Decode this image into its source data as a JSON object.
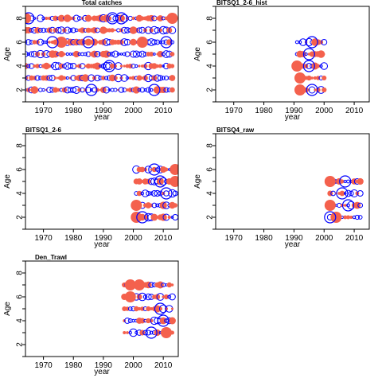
{
  "chart_data": [
    {
      "type": "scatter",
      "title": "Total catches",
      "xlabel": "year",
      "ylabel": "Age",
      "xlim": [
        1964,
        2015
      ],
      "ylim": [
        1,
        9
      ],
      "xticks": [
        1970,
        1980,
        1990,
        2000,
        2010
      ],
      "yticks": [
        2,
        4,
        6,
        8
      ],
      "years": [
        1964,
        2013
      ],
      "ages": [
        2,
        3,
        4,
        5,
        6,
        7,
        8
      ],
      "big_red": [
        [
          1964,
          8
        ],
        [
          2013,
          8
        ],
        [
          1976,
          6
        ],
        [
          2003,
          6
        ]
      ],
      "big_blue": [
        [
          1965,
          8
        ],
        [
          1993,
          8
        ],
        [
          1996,
          8
        ],
        [
          1973,
          6
        ],
        [
          1985,
          6
        ],
        [
          2011,
          6
        ],
        [
          1992,
          4
        ],
        [
          1986,
          2
        ],
        [
          2007,
          2
        ]
      ]
    },
    {
      "type": "scatter",
      "title": "BITSQ1_2-6_hist",
      "xlabel": "year",
      "ylabel": "Age",
      "xlim": [
        1964,
        2015
      ],
      "ylim": [
        1,
        9
      ],
      "xticks": [
        1970,
        1980,
        1990,
        2000,
        2010
      ],
      "yticks": [
        2,
        4,
        6,
        8
      ],
      "years": [
        1991,
        2000
      ],
      "ages": [
        2,
        3,
        4,
        5,
        6
      ],
      "big_red": [
        [
          1992,
          3
        ],
        [
          1992,
          2
        ],
        [
          1991,
          4
        ]
      ],
      "big_blue": [
        [
          1996,
          6
        ],
        [
          1995,
          4
        ],
        [
          1995,
          5
        ],
        [
          1996,
          2
        ]
      ]
    },
    {
      "type": "scatter",
      "title": "BITSQ1_2-6",
      "xlabel": "year",
      "ylabel": "Age",
      "xlim": [
        1964,
        2015
      ],
      "ylim": [
        1,
        9
      ],
      "xticks": [
        1970,
        1980,
        1990,
        2000,
        2010
      ],
      "yticks": [
        2,
        4,
        6,
        8
      ],
      "years": [
        2001,
        2014
      ],
      "ages": [
        2,
        3,
        4,
        5,
        6
      ],
      "big_red": [
        [
          2014,
          6
        ],
        [
          2014,
          5
        ],
        [
          2001,
          3
        ],
        [
          2001,
          2
        ]
      ],
      "big_blue": [
        [
          2007,
          6
        ],
        [
          2009,
          5
        ],
        [
          2003,
          2
        ],
        [
          2011,
          4
        ]
      ]
    },
    {
      "type": "scatter",
      "title": "BITSQ4_raw",
      "xlabel": "year",
      "ylabel": "Age",
      "xlim": [
        1964,
        2015
      ],
      "ylim": [
        1,
        9
      ],
      "xticks": [
        1970,
        1980,
        1990,
        2000,
        2010
      ],
      "yticks": [
        2,
        4,
        6,
        8
      ],
      "years": [
        2002,
        2012
      ],
      "ages": [
        2,
        3,
        4,
        5
      ],
      "big_red": [
        [
          2002,
          5
        ],
        [
          2002,
          3
        ],
        [
          2004,
          2
        ]
      ],
      "big_blue": [
        [
          2007,
          5
        ],
        [
          2002,
          2
        ],
        [
          2006,
          4
        ],
        [
          2008,
          3
        ]
      ]
    },
    {
      "type": "scatter",
      "title": "Den_Trawl",
      "xlabel": "year",
      "ylabel": "Age",
      "xlim": [
        1964,
        2015
      ],
      "ylim": [
        1,
        9
      ],
      "xticks": [
        1970,
        1980,
        1990,
        2000,
        2010
      ],
      "yticks": [
        2,
        4,
        6,
        8
      ],
      "years": [
        1997,
        2013
      ],
      "ages": [
        3,
        4,
        5,
        6,
        7
      ],
      "big_red": [
        [
          1999,
          7
        ],
        [
          2002,
          7
        ],
        [
          1999,
          6
        ],
        [
          2011,
          3
        ]
      ],
      "big_blue": [
        [
          2009,
          5
        ],
        [
          2006,
          3
        ],
        [
          2010,
          4
        ]
      ]
    }
  ],
  "colors": {
    "positive": "#f4614d",
    "negative": "#0000ff",
    "axis": "#000000"
  }
}
